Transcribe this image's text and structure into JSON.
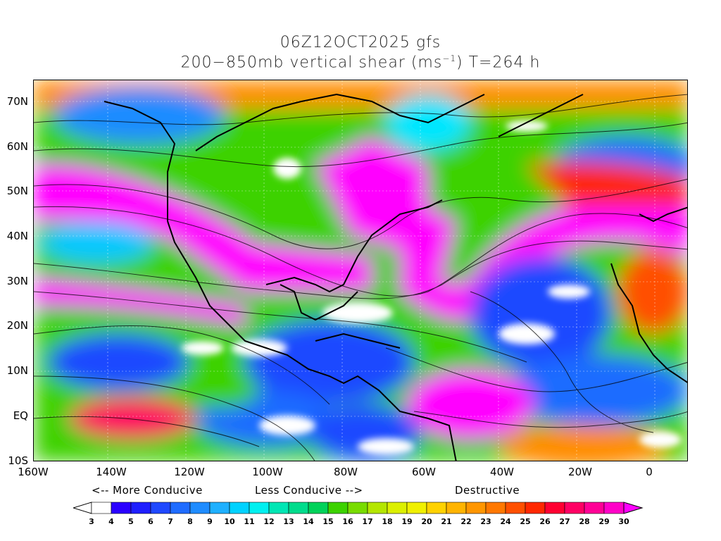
{
  "title": {
    "line1": "06Z12OCT2025 gfs",
    "line2_prefix": "200−850mb vertical shear (ms",
    "line2_sup": "−1",
    "line2_suffix": ") T=264 h"
  },
  "map": {
    "region": "north-atlantic-americas",
    "lat_labels": [
      "70N",
      "60N",
      "50N",
      "40N",
      "30N",
      "20N",
      "10N",
      "EQ",
      "10S"
    ],
    "lon_labels": [
      "160W",
      "140W",
      "120W",
      "100W",
      "80W",
      "60W",
      "40W",
      "20W",
      "0"
    ],
    "field": "vertical wind shear",
    "overlay": "streamlines",
    "colors": {
      "white": "#ffffff",
      "blue": "#1e3cff",
      "cyan": "#00e6ff",
      "green": "#3cd200",
      "yellow": "#f0f000",
      "orange": "#ff8c00",
      "red": "#ff0000",
      "magenta": "#ff00ff"
    }
  },
  "legend": {
    "more_conducive": "<-- More Conducive",
    "less_conducive": "Less Conducive -->",
    "destructive": "Destructive",
    "levels": [
      "3",
      "4",
      "5",
      "6",
      "7",
      "8",
      "9",
      "10",
      "11",
      "12",
      "13",
      "14",
      "15",
      "16",
      "17",
      "18",
      "19",
      "20",
      "21",
      "22",
      "23",
      "24",
      "25",
      "26",
      "27",
      "28",
      "29",
      "30"
    ],
    "colors": [
      "#ffffff",
      "#2a00ff",
      "#1f1fff",
      "#1f48ff",
      "#1f6cff",
      "#1f8cff",
      "#1fb0ff",
      "#00d2ff",
      "#00f0f0",
      "#00e6b4",
      "#00dc8c",
      "#00d25a",
      "#3cd200",
      "#78dc00",
      "#b4e600",
      "#dcf000",
      "#f0f000",
      "#ffd200",
      "#ffb400",
      "#ff9600",
      "#ff7800",
      "#ff5000",
      "#ff2800",
      "#ff0032",
      "#ff0064",
      "#ff0096",
      "#ff00c8",
      "#ff00ff"
    ]
  }
}
